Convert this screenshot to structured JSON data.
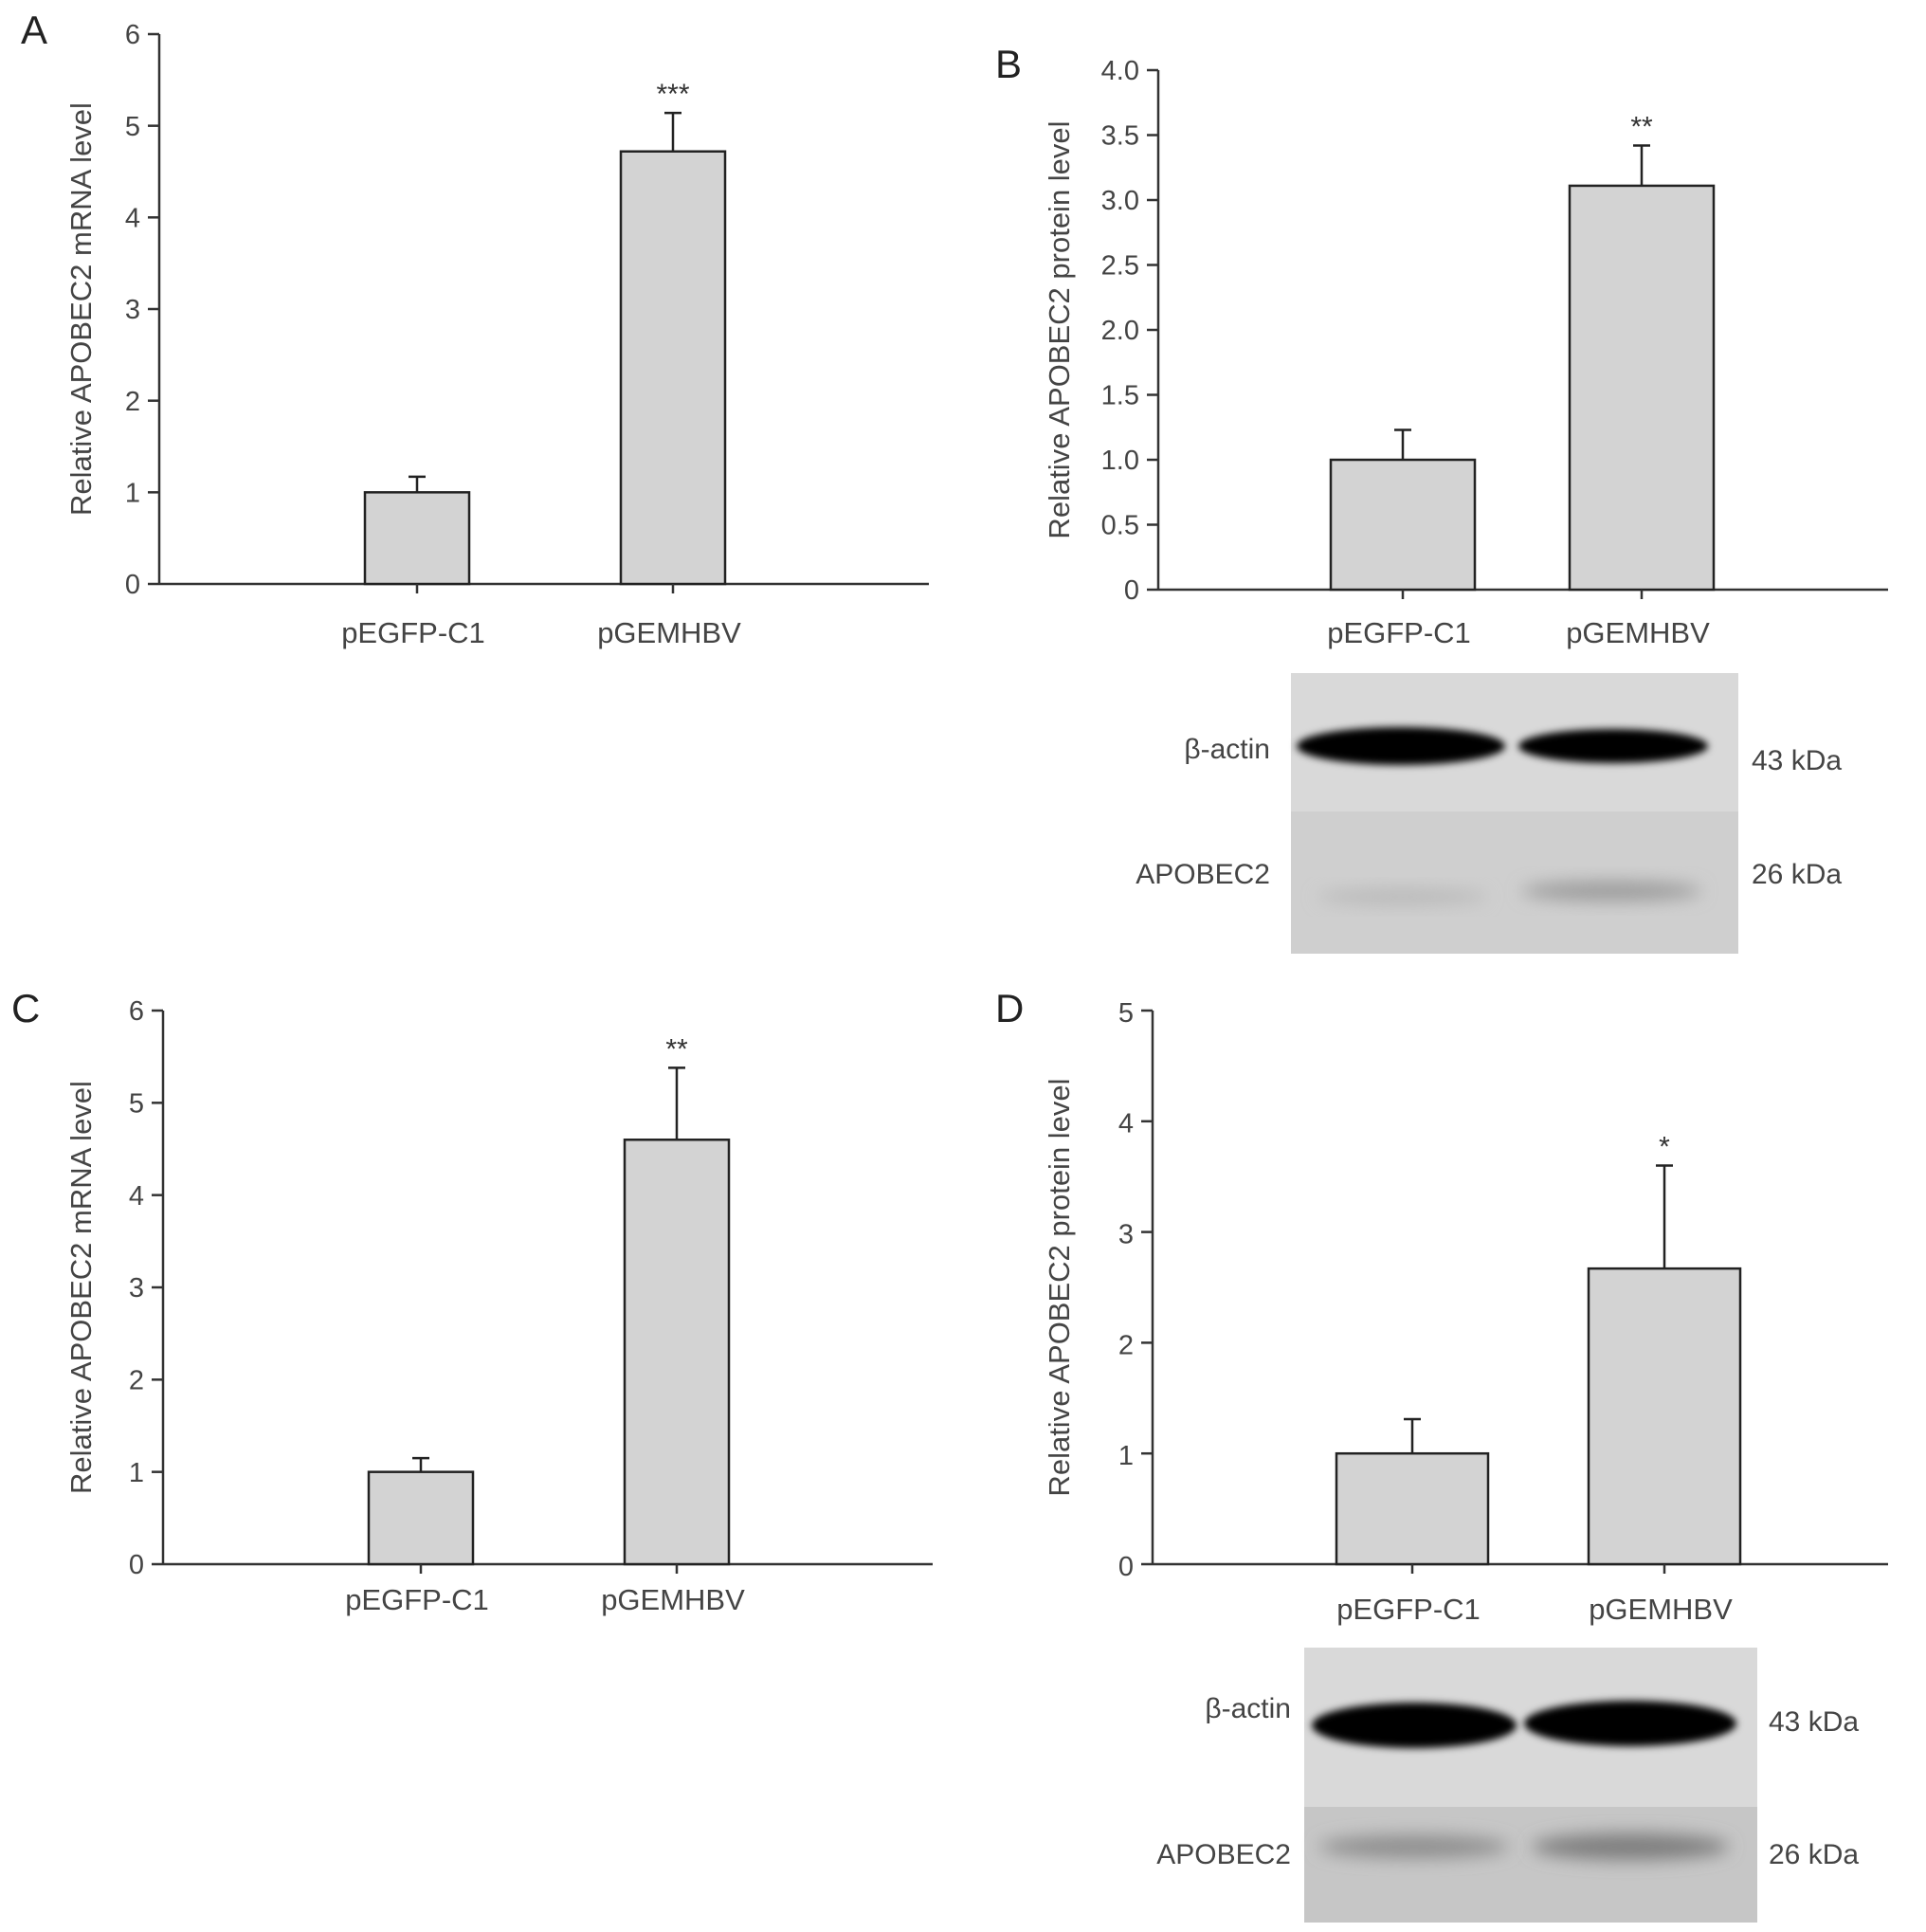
{
  "panel_letters": {
    "A": "A",
    "B": "B",
    "C": "C",
    "D": "D"
  },
  "blots": {
    "B": {
      "top_label": "β-actin",
      "top_size": "43 kDa",
      "bottom_label": "APOBEC2",
      "bottom_size": "26 kDa"
    },
    "D": {
      "top_label": "β-actin",
      "top_size": "43 kDa",
      "bottom_label": "APOBEC2",
      "bottom_size": "26 kDa"
    }
  },
  "chart_data": [
    {
      "panel": "A",
      "type": "bar",
      "categories": [
        "pEGFP-C1",
        "pGEMHBV"
      ],
      "values": [
        1.0,
        4.72
      ],
      "errors": [
        0.17,
        0.42
      ],
      "significance": [
        "",
        "***"
      ],
      "title": "",
      "xlabel": "",
      "ylabel": "Relative APOBEC2 mRNA level",
      "ylim": [
        0,
        6
      ],
      "yticks": [
        "0",
        "1",
        "2",
        "3",
        "4",
        "5",
        "6"
      ],
      "grid": false
    },
    {
      "panel": "B",
      "type": "bar",
      "categories": [
        "pEGFP-C1",
        "pGEMHBV"
      ],
      "values": [
        1.0,
        3.11
      ],
      "errors": [
        0.23,
        0.31
      ],
      "significance": [
        "",
        "**"
      ],
      "title": "",
      "xlabel": "",
      "ylabel": "Relative APOBEC2 protein level",
      "ylim": [
        0,
        4.0
      ],
      "yticks": [
        "0",
        "0.5",
        "1.0",
        "1.5",
        "2.0",
        "2.5",
        "3.0",
        "3.5",
        "4.0"
      ],
      "grid": false
    },
    {
      "panel": "C",
      "type": "bar",
      "categories": [
        "pEGFP-C1",
        "pGEMHBV"
      ],
      "values": [
        1.0,
        4.6
      ],
      "errors": [
        0.15,
        0.78
      ],
      "significance": [
        "",
        "**"
      ],
      "title": "",
      "xlabel": "",
      "ylabel": "Relative APOBEC2 mRNA level",
      "ylim": [
        0,
        6
      ],
      "yticks": [
        "0",
        "1",
        "2",
        "3",
        "4",
        "5",
        "6"
      ],
      "grid": false
    },
    {
      "panel": "D",
      "type": "bar",
      "categories": [
        "pEGFP-C1",
        "pGEMHBV"
      ],
      "values": [
        1.0,
        2.67
      ],
      "errors": [
        0.31,
        0.93
      ],
      "significance": [
        "",
        "*"
      ],
      "title": "",
      "xlabel": "",
      "ylabel": "Relative APOBEC2 protein level",
      "ylim": [
        0,
        5
      ],
      "yticks": [
        "0",
        "1",
        "2",
        "3",
        "4",
        "5"
      ],
      "grid": false
    }
  ]
}
